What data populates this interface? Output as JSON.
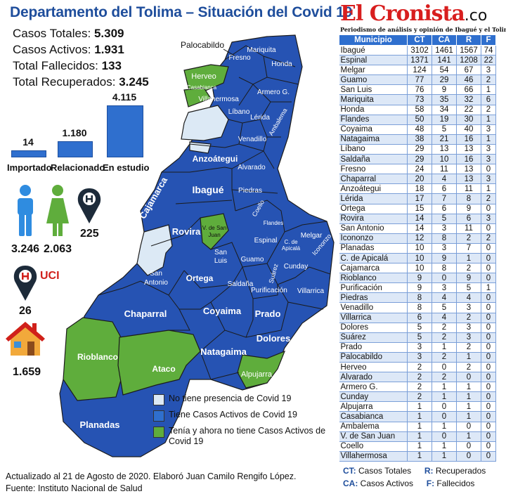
{
  "title": "Departamento del Tolima – Situación del Covid 19",
  "summary": [
    {
      "label": "Casos Totales:",
      "value": "5.309"
    },
    {
      "label": "Casos Activos:",
      "value": "1.931"
    },
    {
      "label": "Total Fallecidos:",
      "value": "133"
    },
    {
      "label": "Total Recuperados:",
      "value": "3.245"
    }
  ],
  "origin_chart": {
    "categories": [
      "Importado",
      "Relacionado",
      "En estudio"
    ],
    "values": [
      14,
      1180,
      4115
    ],
    "value_labels": [
      "14",
      "1.180",
      "4.115"
    ]
  },
  "gender": {
    "male": "3.246",
    "female": "2.063"
  },
  "hospital": {
    "value": "225",
    "icon": "hospital-pin-icon"
  },
  "uci": {
    "label": "UCI",
    "value": "26",
    "icon": "hospital-pin-icon"
  },
  "home": {
    "value": "1.659",
    "icon": "house-icon"
  },
  "map": {
    "municipalities": [
      "Palocabildo",
      "Fresno",
      "Mariquita",
      "Honda",
      "Herveo",
      "Casabianca",
      "Villahermosa",
      "Armero G.",
      "Líbano",
      "Lérida",
      "Ambalema",
      "Venadillo",
      "Anzoátegui",
      "Alvarado",
      "Ibagué",
      "Piedras",
      "Cajamarca",
      "Coello",
      "Flandes",
      "Rovira",
      "V. de San Juan",
      "Espinal",
      "Melgar",
      "C. de Apicalá",
      "Icononzo",
      "San Luis",
      "Guamo",
      "Suárez",
      "Cunday",
      "San Antonio",
      "Ortega",
      "Saldaña",
      "Purificación",
      "Villarrica",
      "Coyaima",
      "Prado",
      "Chaparral",
      "Dolores",
      "Natagaima",
      "Rioblanco",
      "Ataco",
      "Alpujarra",
      "Planadas"
    ]
  },
  "legend": [
    {
      "label": "No tiene presencia de Covid 19",
      "color": "#dce9f5"
    },
    {
      "label": "Tiene Casos Activos de Covid 19",
      "color": "#2f6fce"
    },
    {
      "label": "Tenía y ahora no tiene Casos Activos de Covid 19",
      "color": "#5fad3c"
    }
  ],
  "footer": {
    "line1": "Actualizado al 21 de Agosto de 2020. Elaboró Juan Camilo Rengifo López.",
    "line2": "Fuente: Instituto Nacional de Salud"
  },
  "brand": {
    "name": "El Cronista",
    "suffix": ".co",
    "tagline": "Periodismo de análisis y opinión de Ibagué y el Tolima"
  },
  "table": {
    "headers": [
      "Municipio",
      "CT",
      "CA",
      "R",
      "F"
    ],
    "rows": [
      [
        "Ibagué",
        "3102",
        "1461",
        "1567",
        "74"
      ],
      [
        "Espinal",
        "1371",
        "141",
        "1208",
        "22"
      ],
      [
        "Melgar",
        "124",
        "54",
        "67",
        "3"
      ],
      [
        "Guamo",
        "77",
        "29",
        "46",
        "2"
      ],
      [
        "San Luis",
        "76",
        "9",
        "66",
        "1"
      ],
      [
        "Mariquita",
        "73",
        "35",
        "32",
        "6"
      ],
      [
        "Honda",
        "58",
        "34",
        "22",
        "2"
      ],
      [
        "Flandes",
        "50",
        "19",
        "30",
        "1"
      ],
      [
        "Coyaima",
        "48",
        "5",
        "40",
        "3"
      ],
      [
        "Natagaima",
        "38",
        "21",
        "16",
        "1"
      ],
      [
        "Líbano",
        "29",
        "13",
        "13",
        "3"
      ],
      [
        "Saldaña",
        "29",
        "10",
        "16",
        "3"
      ],
      [
        "Fresno",
        "24",
        "11",
        "13",
        "0"
      ],
      [
        "Chaparral",
        "20",
        "4",
        "13",
        "3"
      ],
      [
        "Anzoátegui",
        "18",
        "6",
        "11",
        "1"
      ],
      [
        "Lérida",
        "17",
        "7",
        "8",
        "2"
      ],
      [
        "Ortega",
        "15",
        "6",
        "9",
        "0"
      ],
      [
        "Rovira",
        "14",
        "5",
        "6",
        "3"
      ],
      [
        "San Antonio",
        "14",
        "3",
        "11",
        "0"
      ],
      [
        "Icononzo",
        "12",
        "8",
        "2",
        "2"
      ],
      [
        "Planadas",
        "10",
        "3",
        "7",
        "0"
      ],
      [
        "C. de Apicalá",
        "10",
        "9",
        "1",
        "0"
      ],
      [
        "Cajamarca",
        "10",
        "8",
        "2",
        "0"
      ],
      [
        "Rioblanco",
        "9",
        "0",
        "9",
        "0"
      ],
      [
        "Purificación",
        "9",
        "3",
        "5",
        "1"
      ],
      [
        "Piedras",
        "8",
        "4",
        "4",
        "0"
      ],
      [
        "Venadillo",
        "8",
        "5",
        "3",
        "0"
      ],
      [
        "Villarrica",
        "6",
        "4",
        "2",
        "0"
      ],
      [
        "Dolores",
        "5",
        "2",
        "3",
        "0"
      ],
      [
        "Suárez",
        "5",
        "2",
        "3",
        "0"
      ],
      [
        "Prado",
        "3",
        "1",
        "2",
        "0"
      ],
      [
        "Palocabildo",
        "3",
        "2",
        "1",
        "0"
      ],
      [
        "Herveo",
        "2",
        "0",
        "2",
        "0"
      ],
      [
        "Alvarado",
        "2",
        "2",
        "0",
        "0"
      ],
      [
        "Armero G.",
        "2",
        "1",
        "1",
        "0"
      ],
      [
        "Cunday",
        "2",
        "1",
        "1",
        "0"
      ],
      [
        "Alpujarra",
        "1",
        "0",
        "1",
        "0"
      ],
      [
        "Casabianca",
        "1",
        "0",
        "1",
        "0"
      ],
      [
        "Ambalema",
        "1",
        "1",
        "0",
        "0"
      ],
      [
        "V. de San Juan",
        "1",
        "0",
        "1",
        "0"
      ],
      [
        "Coello",
        "1",
        "1",
        "0",
        "0"
      ],
      [
        "Villahermosa",
        "1",
        "1",
        "0",
        "0"
      ]
    ]
  },
  "glossary": [
    {
      "key": "CT:",
      "text": "Casos Totales"
    },
    {
      "key": "R:",
      "text": "Recuperados"
    },
    {
      "key": "CA:",
      "text": "Casos Activos"
    },
    {
      "key": "F:",
      "text": "Fallecidos"
    }
  ]
}
